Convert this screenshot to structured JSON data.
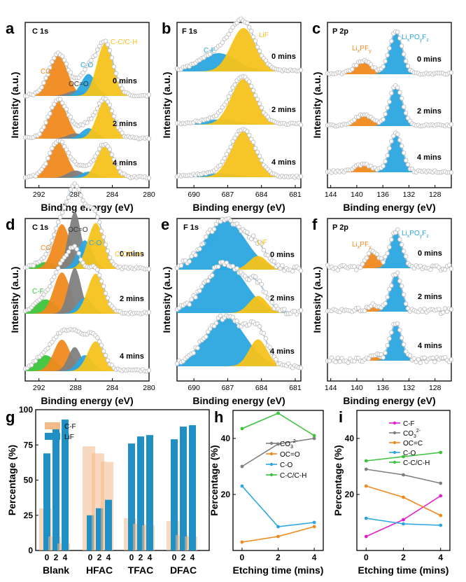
{
  "figure": {
    "panel_labels": [
      "a",
      "b",
      "c",
      "d",
      "e",
      "f",
      "g",
      "h",
      "i"
    ],
    "y_label_intensity": "Intensity (a.u.)",
    "x_label_binding": "Binding energy (eV)",
    "x_label_etching": "Etching time (mins)",
    "y_label_percentage": "Percentage (%)",
    "etch_labels": [
      "0 mins",
      "2 mins",
      "4 mins"
    ]
  },
  "colors": {
    "CO3": "#f08a1e",
    "OCO": "#7f7f7f",
    "CO": "#2ba6e0",
    "CC": "#f5c21b",
    "CF": "#2ba6e0",
    "LiF": "#f5c21b",
    "LixPFy": "#f08a1e",
    "LixPOyFz": "#2ba6e0",
    "CF_d": "#3cc43c",
    "CF_bar": "#f2b98a",
    "LiF_bar": "#1f8fc4",
    "fit": "#a9c3d6",
    "dots": "#c0c0c0"
  },
  "chart_data": [
    {
      "id": "a",
      "type": "xps",
      "title": "C 1s",
      "x_ticks": [
        "292",
        "288",
        "284",
        "280"
      ],
      "xlim": [
        293.5,
        280
      ],
      "components": [
        {
          "name": "CO3^2-",
          "label": "CO",
          "sup": "3-",
          "color_key": "CO3",
          "center": 289.9,
          "width": 1.0,
          "heights": [
            0.78,
            0.72,
            0.68
          ]
        },
        {
          "name": "OC=O",
          "label": "OC=O",
          "color_key": "OCO",
          "center": 288.0,
          "width": 0.9,
          "heights": [
            0.1,
            0.1,
            0.14
          ]
        },
        {
          "name": "C-O",
          "label": "C-O",
          "color_key": "CO",
          "center": 286.6,
          "width": 0.8,
          "heights": [
            0.42,
            0.2,
            0.12
          ]
        },
        {
          "name": "C-C/C-H",
          "label": "C-C/C-H",
          "color_key": "CC",
          "center": 284.8,
          "width": 0.9,
          "heights": [
            1.0,
            0.72,
            0.62
          ]
        }
      ]
    },
    {
      "id": "b",
      "type": "xps",
      "title": "F 1s",
      "x_ticks": [
        "690",
        "687",
        "684",
        "681"
      ],
      "xlim": [
        691.5,
        680.5
      ],
      "components": [
        {
          "name": "C-F",
          "label": "C-F",
          "color_key": "CF",
          "center": 687.8,
          "width": 1.6,
          "heights": [
            0.42,
            0.12,
            0.09
          ]
        },
        {
          "name": "LiF",
          "label": "LiF",
          "color_key": "LiF",
          "center": 685.6,
          "width": 1.1,
          "heights": [
            1.0,
            1.05,
            1.05
          ]
        }
      ]
    },
    {
      "id": "c",
      "type": "xps",
      "title": "P 2p",
      "x_ticks": [
        "144",
        "140",
        "136",
        "132",
        "128"
      ],
      "xlim": [
        144.5,
        125.5
      ],
      "components": [
        {
          "name": "LixPFy",
          "label": "LixPFy",
          "color_key": "LixPFy",
          "center": 139.0,
          "width": 1.3,
          "heights": [
            0.3,
            0.25,
            0.18
          ]
        },
        {
          "name": "LixPOyFz",
          "label": "LixPOyFz",
          "color_key": "LixPOyFz",
          "center": 134.0,
          "width": 1.0,
          "heights": [
            1.0,
            0.95,
            0.9
          ]
        }
      ]
    },
    {
      "id": "d",
      "type": "xps",
      "title": "C 1s",
      "x_ticks": [
        "292",
        "288",
        "284",
        "280"
      ],
      "xlim": [
        293.5,
        280
      ],
      "components": [
        {
          "name": "C-F",
          "label": "C-F",
          "color_key": "CF_d",
          "center": 291.3,
          "width": 1.1,
          "heights": [
            0.12,
            0.25,
            0.28
          ]
        },
        {
          "name": "CO3^2-",
          "label": "CO",
          "sup": "3-",
          "color_key": "CO3",
          "center": 289.5,
          "width": 0.9,
          "heights": [
            0.78,
            0.72,
            0.55
          ]
        },
        {
          "name": "OC=O",
          "label": "OC=O",
          "color_key": "OCO",
          "center": 288.1,
          "width": 0.7,
          "heights": [
            1.0,
            0.8,
            0.42
          ]
        },
        {
          "name": "C-O",
          "label": "C-O",
          "color_key": "CO",
          "center": 287.0,
          "width": 0.8,
          "heights": [
            0.5,
            0.28,
            0.28
          ]
        },
        {
          "name": "C-C/C-H",
          "label": "C-C/C-H",
          "color_key": "CC",
          "center": 285.8,
          "width": 0.9,
          "heights": [
            0.8,
            0.7,
            0.52
          ]
        }
      ]
    },
    {
      "id": "e",
      "type": "xps",
      "title": "F 1s",
      "x_ticks": [
        "690",
        "687",
        "684",
        "681"
      ],
      "xlim": [
        691.5,
        680.5
      ],
      "components": [
        {
          "name": "C-F",
          "label": "C-F",
          "color_key": "CF",
          "center": 687.2,
          "width": 1.8,
          "heights": [
            1.0,
            1.0,
            1.0
          ]
        },
        {
          "name": "LiF",
          "label": "LiF",
          "color_key": "LiF",
          "center": 684.3,
          "width": 0.8,
          "heights": [
            0.28,
            0.35,
            0.55
          ]
        }
      ]
    },
    {
      "id": "f",
      "type": "xps",
      "title": "P 2p",
      "x_ticks": [
        "144",
        "140",
        "136",
        "132",
        "128"
      ],
      "xlim": [
        144.5,
        125.5
      ],
      "components": [
        {
          "name": "LixPFy",
          "label": "LixPFy",
          "color_key": "LixPFy",
          "center": 137.5,
          "width": 0.9,
          "heights": [
            0.45,
            0.15,
            0.12
          ]
        },
        {
          "name": "LixPOyFz",
          "label": "LixPOyFz",
          "color_key": "LixPOyFz",
          "center": 134.0,
          "width": 0.9,
          "heights": [
            1.0,
            1.0,
            1.0
          ]
        }
      ]
    },
    {
      "id": "g",
      "type": "bar",
      "ylabel": "Percentage (%)",
      "ylim": [
        0,
        100
      ],
      "y_ticks": [
        "0",
        "25",
        "50",
        "75",
        "100"
      ],
      "groups": [
        "Blank",
        "HFAC",
        "TFAC",
        "DFAC"
      ],
      "sub_ticks": [
        "0",
        "2",
        "4"
      ],
      "series": [
        {
          "name": "C-F",
          "color_key": "CF_bar",
          "values": [
            [
              30,
              10,
              5
            ],
            [
              74,
              69,
              63
            ],
            [
              23,
              19,
              18
            ],
            [
              21,
              11,
              10
            ]
          ]
        },
        {
          "name": "LiF",
          "color_key": "LiF_bar",
          "values": [
            [
              69,
              88,
              93
            ],
            [
              25,
              30,
              36
            ],
            [
              76,
              81,
              82
            ],
            [
              79,
              88,
              89
            ]
          ]
        }
      ]
    },
    {
      "id": "h",
      "type": "line",
      "xlabel": "Etching time (mins)",
      "ylabel": "Percentage (%)",
      "x": [
        0,
        2,
        4
      ],
      "xlim": [
        -0.5,
        4.5
      ],
      "ylim": [
        0,
        50
      ],
      "x_ticks": [
        "0",
        "2",
        "4"
      ],
      "y_ticks": [
        "20",
        "40"
      ],
      "series": [
        {
          "name": "CO3^2-",
          "label": "CO",
          "sup": "3",
          "sup2": "2-",
          "color": "#7f7f7f",
          "values": [
            30,
            38,
            40
          ]
        },
        {
          "name": "OC=O",
          "label": "OC=O",
          "color": "#f08a1e",
          "values": [
            3,
            5,
            8.5
          ]
        },
        {
          "name": "C-O",
          "label": "C-O",
          "color": "#2ba6e0",
          "values": [
            23,
            8.5,
            10
          ]
        },
        {
          "name": "C-C/C-H",
          "label": "C-C/C-H",
          "color": "#3cc43c",
          "values": [
            43.5,
            49,
            41
          ]
        }
      ]
    },
    {
      "id": "i",
      "type": "line",
      "xlabel": "Etching time (mins)",
      "ylabel": "Percentage (%)",
      "x": [
        0,
        2,
        4
      ],
      "xlim": [
        -0.5,
        4.5
      ],
      "ylim": [
        0,
        50
      ],
      "x_ticks": [
        "0",
        "2",
        "4"
      ],
      "y_ticks": [
        "20",
        "40"
      ],
      "series": [
        {
          "name": "C-F",
          "label": "C-F",
          "color": "#e020d0",
          "values": [
            5,
            11,
            19.5
          ]
        },
        {
          "name": "CO3^2-",
          "label": "CO",
          "sup": "3",
          "sup2": "2-",
          "color": "#7f7f7f",
          "values": [
            29,
            27,
            24
          ]
        },
        {
          "name": "OC=C",
          "label": "OC=C",
          "color": "#f08a1e",
          "values": [
            23,
            19,
            12.5
          ]
        },
        {
          "name": "C-O",
          "label": "C-O",
          "color": "#2ba6e0",
          "values": [
            11.5,
            9.5,
            9
          ]
        },
        {
          "name": "C-C/C-H",
          "label": "C-C/C-H",
          "color": "#3cc43c",
          "values": [
            32,
            33.5,
            35
          ]
        }
      ]
    }
  ]
}
